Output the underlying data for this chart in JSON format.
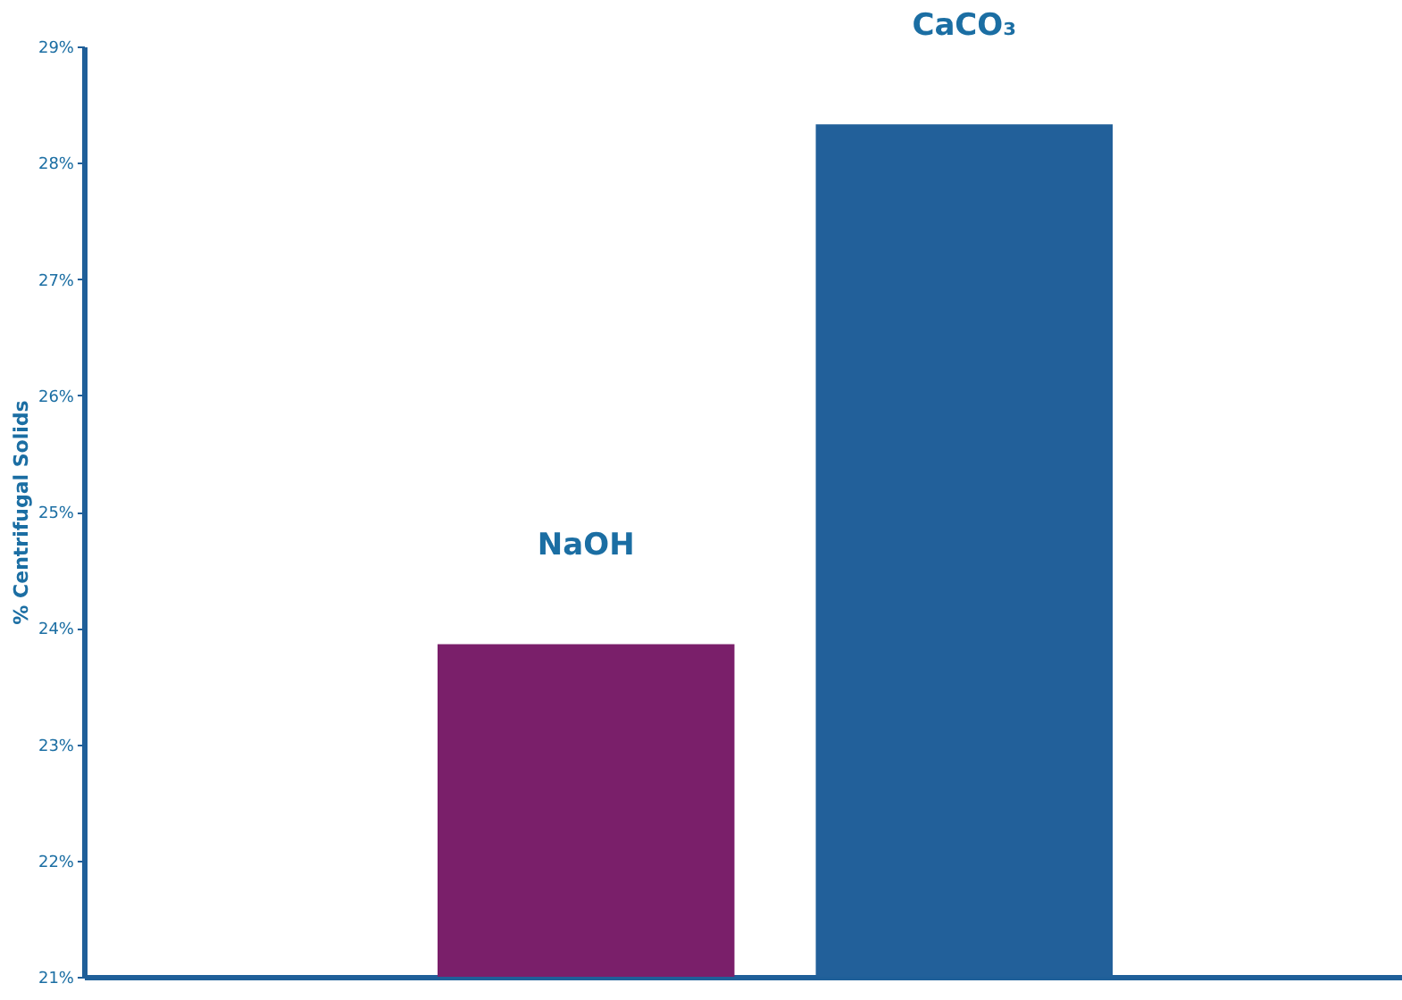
{
  "chart_data": {
    "type": "bar",
    "ylabel": "% Centrifugal Solids",
    "categories": [
      "NaOH",
      "CaCO₃"
    ],
    "values": [
      23.86,
      28.33
    ],
    "colors": [
      "#7a1f6a",
      "#22609a"
    ],
    "ylim": [
      21,
      29
    ],
    "yticks": [
      {
        "value": 21,
        "label": "21%"
      },
      {
        "value": 22,
        "label": "22%"
      },
      {
        "value": 23,
        "label": "23%"
      },
      {
        "value": 24,
        "label": "24%"
      },
      {
        "value": 25,
        "label": "25%"
      },
      {
        "value": 26,
        "label": "26%"
      },
      {
        "value": 27,
        "label": "27%"
      },
      {
        "value": 28,
        "label": "28%"
      },
      {
        "value": 29,
        "label": "29%"
      }
    ],
    "tick_labels": "y",
    "grid": false
  }
}
